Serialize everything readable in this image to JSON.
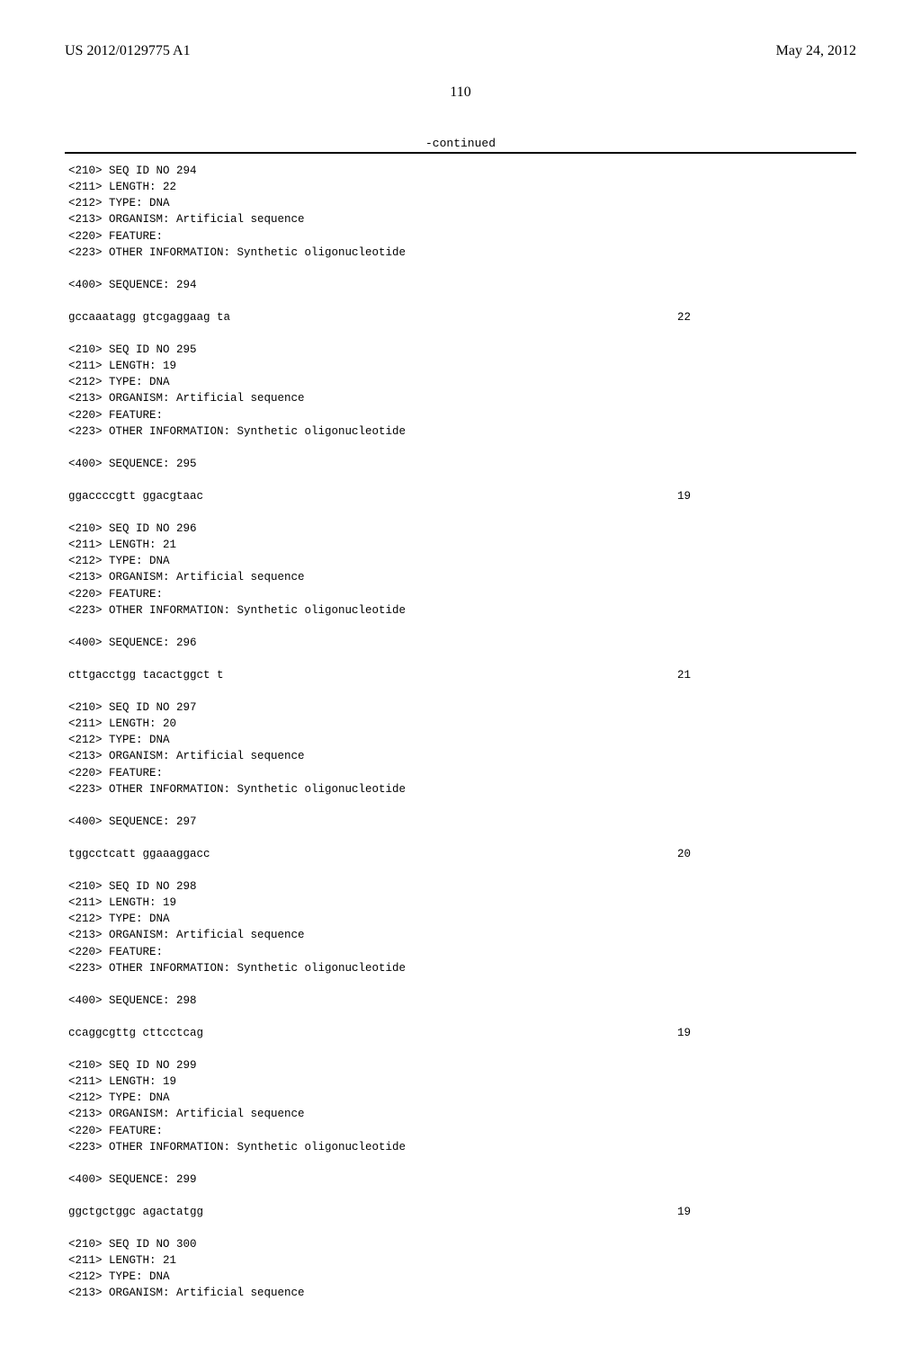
{
  "header": {
    "left": "US 2012/0129775 A1",
    "right": "May 24, 2012"
  },
  "page_number": "110",
  "continued_label": "-continued",
  "entries": [
    {
      "meta": "<210> SEQ ID NO 294\n<211> LENGTH: 22\n<212> TYPE: DNA\n<213> ORGANISM: Artificial sequence\n<220> FEATURE:\n<223> OTHER INFORMATION: Synthetic oligonucleotide",
      "seq_label": "<400> SEQUENCE: 294",
      "sequence": "gccaaatagg gtcgaggaag ta",
      "length": "22"
    },
    {
      "meta": "<210> SEQ ID NO 295\n<211> LENGTH: 19\n<212> TYPE: DNA\n<213> ORGANISM: Artificial sequence\n<220> FEATURE:\n<223> OTHER INFORMATION: Synthetic oligonucleotide",
      "seq_label": "<400> SEQUENCE: 295",
      "sequence": "ggaccccgtt ggacgtaac",
      "length": "19"
    },
    {
      "meta": "<210> SEQ ID NO 296\n<211> LENGTH: 21\n<212> TYPE: DNA\n<213> ORGANISM: Artificial sequence\n<220> FEATURE:\n<223> OTHER INFORMATION: Synthetic oligonucleotide",
      "seq_label": "<400> SEQUENCE: 296",
      "sequence": "cttgacctgg tacactggct t",
      "length": "21"
    },
    {
      "meta": "<210> SEQ ID NO 297\n<211> LENGTH: 20\n<212> TYPE: DNA\n<213> ORGANISM: Artificial sequence\n<220> FEATURE:\n<223> OTHER INFORMATION: Synthetic oligonucleotide",
      "seq_label": "<400> SEQUENCE: 297",
      "sequence": "tggcctcatt ggaaaggacc",
      "length": "20"
    },
    {
      "meta": "<210> SEQ ID NO 298\n<211> LENGTH: 19\n<212> TYPE: DNA\n<213> ORGANISM: Artificial sequence\n<220> FEATURE:\n<223> OTHER INFORMATION: Synthetic oligonucleotide",
      "seq_label": "<400> SEQUENCE: 298",
      "sequence": "ccaggcgttg cttcctcag",
      "length": "19"
    },
    {
      "meta": "<210> SEQ ID NO 299\n<211> LENGTH: 19\n<212> TYPE: DNA\n<213> ORGANISM: Artificial sequence\n<220> FEATURE:\n<223> OTHER INFORMATION: Synthetic oligonucleotide",
      "seq_label": "<400> SEQUENCE: 299",
      "sequence": "ggctgctggc agactatgg",
      "length": "19"
    },
    {
      "meta": "<210> SEQ ID NO 300\n<211> LENGTH: 21\n<212> TYPE: DNA\n<213> ORGANISM: Artificial sequence",
      "seq_label": "",
      "sequence": "",
      "length": ""
    }
  ]
}
